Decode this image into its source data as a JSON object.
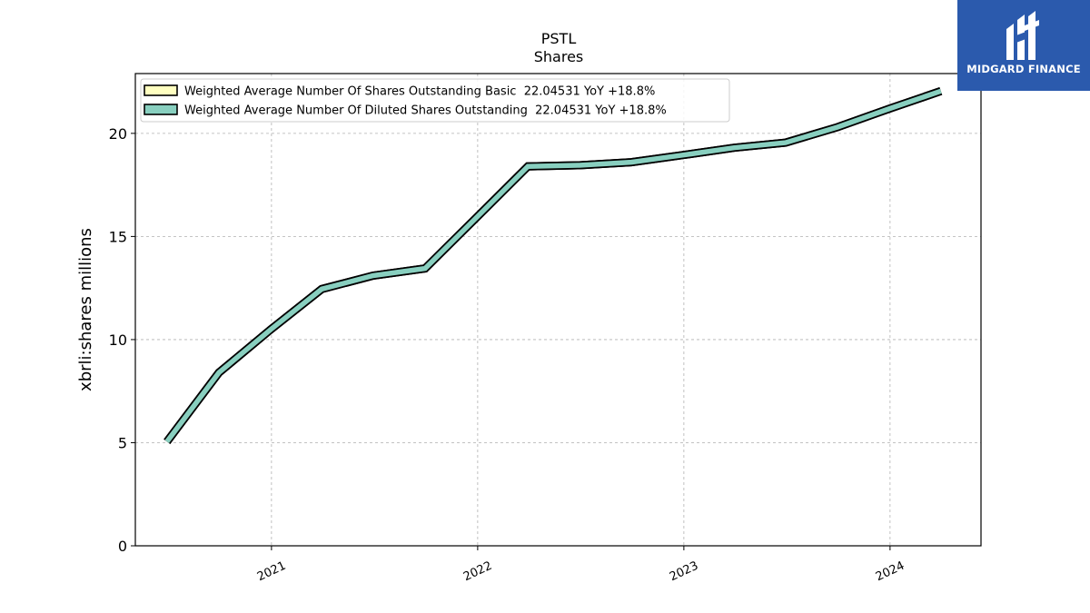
{
  "brand": {
    "name": "MIDGARD FINANCE",
    "bg_color": "#2b5aad"
  },
  "chart_data": {
    "type": "line",
    "title": "PSTL",
    "subtitle": "Shares",
    "xlabel": "",
    "ylabel": "xbrli:shares millions",
    "ylim": [
      0,
      22.9
    ],
    "yticks": [
      0,
      5,
      10,
      15,
      20
    ],
    "xlim": [
      "2020-05-05",
      "2024-06-10"
    ],
    "xticks": [
      {
        "label": "2021",
        "date": "2021-01-01"
      },
      {
        "label": "2022",
        "date": "2022-01-01"
      },
      {
        "label": "2023",
        "date": "2023-01-01"
      },
      {
        "label": "2024",
        "date": "2024-01-01"
      }
    ],
    "grid": true,
    "legend_position": "top-left",
    "x": [
      "2020-06-30",
      "2020-09-30",
      "2020-12-31",
      "2021-03-31",
      "2021-06-30",
      "2021-09-30",
      "2021-12-31",
      "2022-03-31",
      "2022-06-30",
      "2022-09-30",
      "2022-12-31",
      "2023-03-31",
      "2023-06-30",
      "2023-09-30",
      "2023-12-31",
      "2024-03-31"
    ],
    "series": [
      {
        "name": "Weighted Average Number Of Shares Outstanding Basic",
        "legend_label": "Weighted Average Number Of Shares Outstanding Basic  22.04531 YoY +18.8%",
        "color": "#ffffc0",
        "values": [
          5.05,
          8.4,
          10.5,
          12.45,
          13.1,
          13.45,
          15.95,
          18.4,
          18.45,
          18.6,
          18.95,
          19.3,
          19.55,
          20.3,
          21.2,
          22.05
        ]
      },
      {
        "name": "Weighted Average Number Of Diluted Shares Outstanding",
        "legend_label": "Weighted Average Number Of Diluted Shares Outstanding  22.04531 YoY +18.8%",
        "color": "#88cfbf",
        "values": [
          5.05,
          8.4,
          10.5,
          12.45,
          13.1,
          13.45,
          15.95,
          18.4,
          18.45,
          18.6,
          18.95,
          19.3,
          19.55,
          20.3,
          21.2,
          22.05
        ]
      }
    ]
  }
}
